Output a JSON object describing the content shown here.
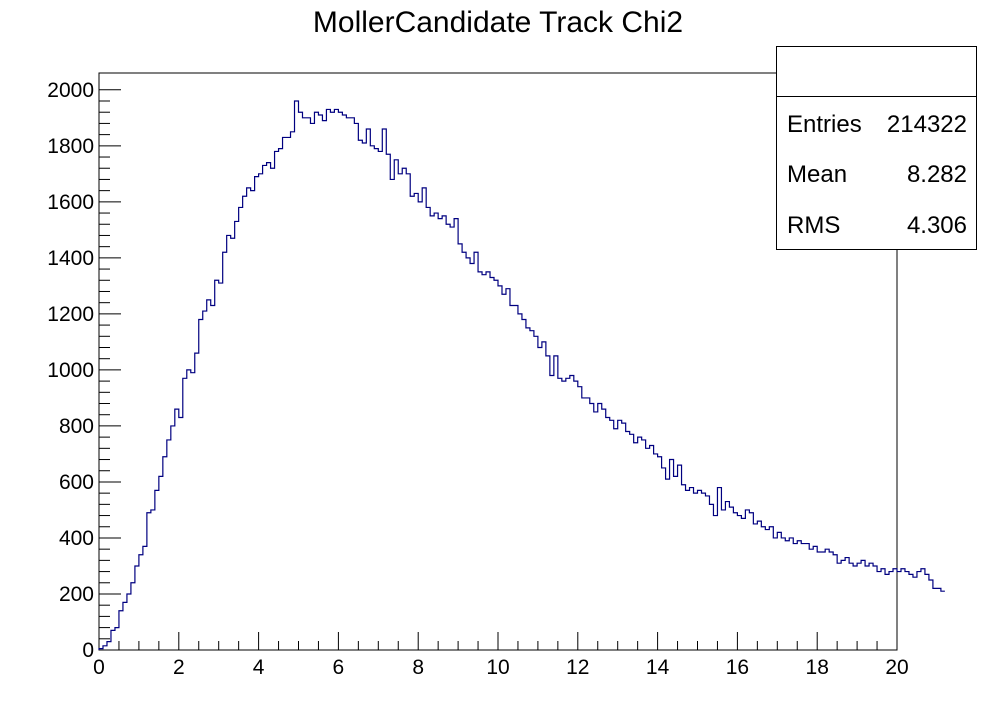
{
  "title": "MollerCandidate Track Chi2",
  "stats": {
    "entries_label": "Entries",
    "entries_value": "214322",
    "mean_label": "Mean",
    "mean_value": "8.282",
    "rms_label": "RMS",
    "rms_value": "4.306"
  },
  "colors": {
    "histogram_line": "#000080",
    "axes": "#000000"
  },
  "chart_data": {
    "type": "bar",
    "style": "step-histogram",
    "title": "MollerCandidate Track Chi2",
    "xlabel": "",
    "ylabel": "",
    "xlim": [
      0,
      20
    ],
    "ylim": [
      0,
      2060
    ],
    "x_ticks": [
      0,
      2,
      4,
      6,
      8,
      10,
      12,
      14,
      16,
      18,
      20
    ],
    "y_ticks": [
      0,
      200,
      400,
      600,
      800,
      1000,
      1200,
      1400,
      1600,
      1800,
      2000
    ],
    "x_tick_labels": [
      "0",
      "2",
      "4",
      "6",
      "8",
      "10",
      "12",
      "14",
      "16",
      "18",
      "20"
    ],
    "y_tick_labels": [
      "0",
      "200",
      "400",
      "600",
      "800",
      "1000",
      "1200",
      "1400",
      "1600",
      "1800",
      "2000"
    ],
    "grid": false,
    "legend": "top-right",
    "bin_width": 0.1,
    "values": [
      5,
      15,
      30,
      70,
      80,
      140,
      170,
      200,
      240,
      300,
      340,
      370,
      490,
      500,
      570,
      620,
      690,
      750,
      800,
      860,
      830,
      970,
      1000,
      990,
      1060,
      1180,
      1210,
      1250,
      1230,
      1320,
      1310,
      1420,
      1480,
      1470,
      1530,
      1580,
      1620,
      1650,
      1640,
      1690,
      1700,
      1730,
      1740,
      1720,
      1780,
      1790,
      1830,
      1830,
      1850,
      1960,
      1920,
      1900,
      1900,
      1880,
      1920,
      1910,
      1890,
      1930,
      1920,
      1930,
      1920,
      1910,
      1900,
      1900,
      1880,
      1820,
      1810,
      1860,
      1800,
      1790,
      1780,
      1860,
      1770,
      1680,
      1750,
      1700,
      1720,
      1700,
      1620,
      1630,
      1600,
      1650,
      1580,
      1550,
      1560,
      1540,
      1550,
      1520,
      1510,
      1540,
      1450,
      1420,
      1400,
      1380,
      1420,
      1350,
      1340,
      1350,
      1330,
      1320,
      1300,
      1270,
      1290,
      1230,
      1230,
      1200,
      1180,
      1150,
      1140,
      1120,
      1080,
      1100,
      1050,
      980,
      1050,
      970,
      960,
      970,
      980,
      960,
      940,
      900,
      900,
      880,
      850,
      880,
      860,
      830,
      820,
      790,
      820,
      810,
      780,
      770,
      740,
      760,
      750,
      720,
      730,
      700,
      690,
      650,
      610,
      680,
      620,
      660,
      590,
      570,
      580,
      560,
      570,
      560,
      550,
      520,
      480,
      580,
      500,
      530,
      510,
      490,
      480,
      470,
      500,
      490,
      450,
      460,
      440,
      430,
      440,
      400,
      420,
      400,
      390,
      400,
      380,
      390,
      380,
      380,
      360,
      370,
      350,
      350,
      360,
      350,
      340,
      310,
      320,
      330,
      310,
      300,
      310,
      320,
      300,
      310,
      300,
      280,
      290,
      270,
      280,
      290,
      280,
      290,
      280,
      270,
      260,
      280,
      290,
      270,
      250,
      220,
      220,
      210
    ]
  }
}
